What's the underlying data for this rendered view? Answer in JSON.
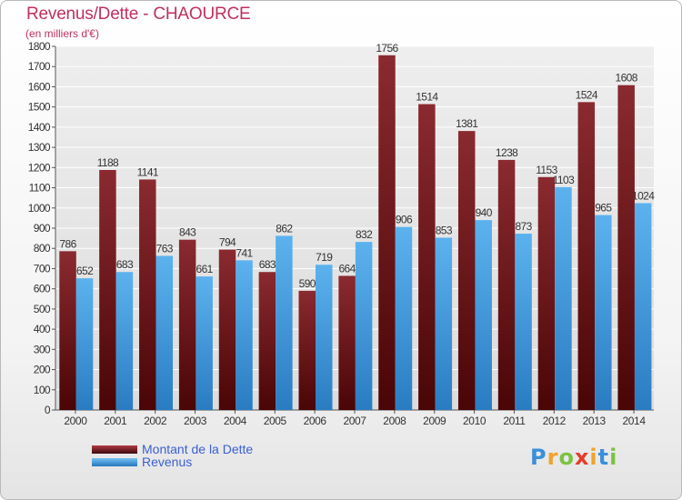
{
  "title": "Revenus/Dette - CHAOURCE",
  "subtitle": "(en milliers d'€)",
  "logo": {
    "letters": [
      {
        "ch": "P",
        "color": "#3a8fd8"
      },
      {
        "ch": "r",
        "color": "#f0a32a"
      },
      {
        "ch": "o",
        "color": "#7cc242"
      },
      {
        "ch": "x",
        "color": "#e43d2a"
      },
      {
        "ch": "i",
        "color": "#f0a32a"
      },
      {
        "ch": "t",
        "color": "#3a8fd8"
      },
      {
        "ch": "i",
        "color": "#7cc242"
      }
    ]
  },
  "chart_data": {
    "type": "bar",
    "categories": [
      "2000",
      "2001",
      "2002",
      "2003",
      "2004",
      "2005",
      "2006",
      "2007",
      "2008",
      "2009",
      "2010",
      "2011",
      "2012",
      "2013",
      "2014"
    ],
    "series": [
      {
        "name": "Montant de la Dette",
        "color": "#7a1f24",
        "values": [
          786,
          1188,
          1141,
          843,
          794,
          683,
          590,
          664,
          1756,
          1514,
          1381,
          1238,
          1153,
          1524,
          1608
        ]
      },
      {
        "name": "Revenus",
        "color": "#4aa3e4",
        "values": [
          652,
          683,
          763,
          661,
          741,
          862,
          719,
          832,
          906,
          853,
          940,
          873,
          1103,
          965,
          1024
        ]
      }
    ],
    "ylim": [
      0,
      1800
    ],
    "yticks": [
      0,
      100,
      200,
      300,
      400,
      500,
      600,
      700,
      800,
      900,
      1000,
      1100,
      1200,
      1300,
      1400,
      1500,
      1600,
      1700,
      1800
    ],
    "grid": true,
    "legend_position": "bottom-left"
  }
}
